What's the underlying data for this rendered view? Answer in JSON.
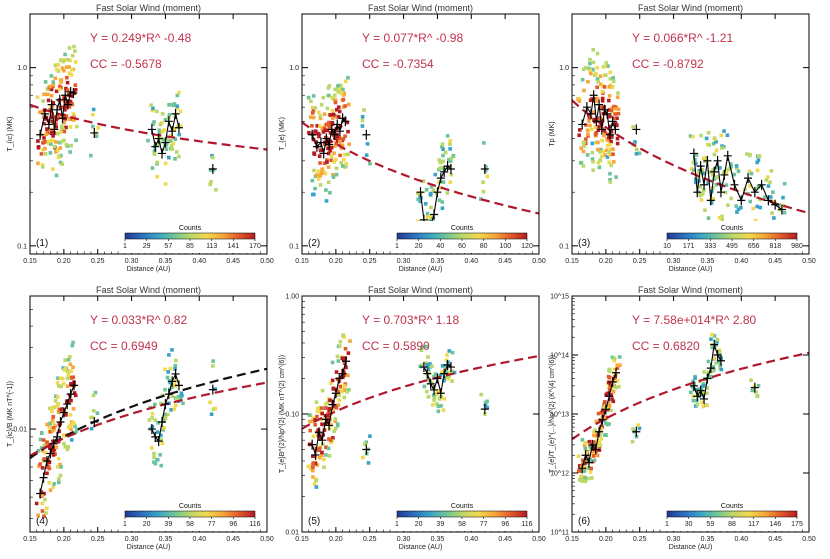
{
  "chart_data": [
    {
      "type": "scatter",
      "panel_label": "(1)",
      "title": "Fast Solar Wind (moment)",
      "ylabel": "T_{ic} (MK)",
      "xlabel": "Distance (AU)",
      "xlim": [
        0.15,
        0.5
      ],
      "ylim": [
        0.09,
        2.0
      ],
      "yscale": "log",
      "x_ticks": [
        "0.15",
        "0.20",
        "0.25",
        "0.30",
        "0.35",
        "0.40",
        "0.45",
        "0.50"
      ],
      "y_ticks": [
        {
          "value": 1.0,
          "label": "1.0"
        },
        {
          "value": 0.1,
          "label": "0.1"
        }
      ],
      "equation": "Y = 0.249*R^ -0.48",
      "cc": "CC = -0.5678",
      "fit": {
        "coef": 0.249,
        "exp": -0.48
      },
      "colorbar": {
        "title": "Counts",
        "ticks": [
          "1",
          "29",
          "57",
          "85",
          "113",
          "141",
          "170"
        ]
      },
      "data_x": [
        0.165,
        0.172,
        0.178,
        0.182,
        0.186,
        0.19,
        0.194,
        0.198,
        0.202,
        0.206,
        0.21,
        0.214,
        0.245,
        0.33,
        0.335,
        0.34,
        0.345,
        0.35,
        0.355,
        0.36,
        0.365,
        0.37,
        0.42
      ],
      "data_y": [
        0.42,
        0.55,
        0.48,
        0.62,
        0.45,
        0.58,
        0.66,
        0.52,
        0.7,
        0.62,
        0.73,
        0.72,
        0.43,
        0.45,
        0.36,
        0.4,
        0.33,
        0.38,
        0.5,
        0.44,
        0.55,
        0.46,
        0.27
      ]
    },
    {
      "type": "scatter",
      "panel_label": "(2)",
      "title": "Fast Solar Wind (moment)",
      "ylabel": "T_{e} (MK)",
      "xlabel": "Distance (AU)",
      "xlim": [
        0.15,
        0.5
      ],
      "ylim": [
        0.09,
        2.0
      ],
      "yscale": "log",
      "x_ticks": [
        "0.15",
        "0.20",
        "0.25",
        "0.30",
        "0.35",
        "0.40",
        "0.45",
        "0.50"
      ],
      "y_ticks": [
        {
          "value": 1.0,
          "label": "1.0"
        },
        {
          "value": 0.1,
          "label": "0.1"
        }
      ],
      "equation": "Y = 0.077*R^ -0.98",
      "cc": "CC = -0.7354",
      "fit": {
        "coef": 0.077,
        "exp": -0.98
      },
      "colorbar": {
        "title": "Counts",
        "ticks": [
          "1",
          "20",
          "40",
          "60",
          "80",
          "100",
          "120"
        ]
      },
      "data_x": [
        0.165,
        0.172,
        0.178,
        0.182,
        0.186,
        0.19,
        0.194,
        0.198,
        0.202,
        0.206,
        0.21,
        0.214,
        0.245,
        0.325,
        0.33,
        0.335,
        0.34,
        0.345,
        0.35,
        0.355,
        0.36,
        0.365,
        0.37,
        0.42
      ],
      "data_y": [
        0.42,
        0.36,
        0.38,
        0.33,
        0.4,
        0.37,
        0.45,
        0.42,
        0.48,
        0.44,
        0.52,
        0.5,
        0.42,
        0.2,
        0.14,
        0.12,
        0.13,
        0.15,
        0.2,
        0.24,
        0.26,
        0.28,
        0.27,
        0.27
      ]
    },
    {
      "type": "scatter",
      "panel_label": "(3)",
      "title": "Fast Solar Wind (moment)",
      "ylabel": "Tp (MK)",
      "xlabel": "Distance (AU)",
      "xlim": [
        0.15,
        0.5
      ],
      "ylim": [
        0.09,
        2.0
      ],
      "yscale": "log",
      "x_ticks": [
        "0.15",
        "0.20",
        "0.25",
        "0.30",
        "0.35",
        "0.40",
        "0.45",
        "0.50"
      ],
      "y_ticks": [
        {
          "value": 1.0,
          "label": "1.0"
        },
        {
          "value": 0.1,
          "label": "0.1"
        }
      ],
      "equation": "Y = 0.066*R^ -1.21",
      "cc": "CC = -0.8792",
      "fit": {
        "coef": 0.066,
        "exp": -1.21
      },
      "colorbar": {
        "title": "Counts",
        "ticks": [
          "10",
          "171",
          "333",
          "495",
          "656",
          "818",
          "980"
        ]
      },
      "data_x": [
        0.165,
        0.172,
        0.178,
        0.182,
        0.186,
        0.19,
        0.194,
        0.198,
        0.202,
        0.206,
        0.21,
        0.214,
        0.245,
        0.33,
        0.335,
        0.34,
        0.345,
        0.35,
        0.355,
        0.36,
        0.365,
        0.37,
        0.375,
        0.38,
        0.39,
        0.4,
        0.41,
        0.42,
        0.43,
        0.44,
        0.45,
        0.46
      ],
      "data_y": [
        0.48,
        0.6,
        0.55,
        0.7,
        0.5,
        0.62,
        0.45,
        0.58,
        0.55,
        0.42,
        0.5,
        0.45,
        0.45,
        0.33,
        0.2,
        0.28,
        0.22,
        0.3,
        0.18,
        0.26,
        0.3,
        0.2,
        0.25,
        0.32,
        0.22,
        0.18,
        0.24,
        0.2,
        0.22,
        0.18,
        0.17,
        0.16
      ]
    },
    {
      "type": "scatter",
      "panel_label": "(4)",
      "title": "Fast Solar Wind (moment)",
      "ylabel": "T_{ic}/B (MK nT^{-1})",
      "xlabel": "Distance (AU)",
      "xlim": [
        0.15,
        0.5
      ],
      "ylim": [
        0.0025,
        0.06
      ],
      "yscale": "log",
      "x_ticks": [
        "0.15",
        "0.20",
        "0.25",
        "0.30",
        "0.35",
        "0.40",
        "0.45",
        "0.50"
      ],
      "y_ticks": [
        {
          "value": 0.01,
          "label": "0.01"
        }
      ],
      "equation": "Y = 0.033*R^  0.82",
      "cc": "CC =  0.6949",
      "fit": {
        "coef": 0.033,
        "exp": 0.82
      },
      "fit2": {
        "coef": 0.045,
        "exp": 1.0
      },
      "colorbar": {
        "title": "Counts",
        "ticks": [
          "1",
          "20",
          "39",
          "58",
          "77",
          "96",
          "116"
        ]
      },
      "data_x": [
        0.165,
        0.17,
        0.175,
        0.18,
        0.185,
        0.19,
        0.195,
        0.2,
        0.205,
        0.21,
        0.215,
        0.245,
        0.33,
        0.335,
        0.34,
        0.345,
        0.35,
        0.355,
        0.36,
        0.365,
        0.37,
        0.42
      ],
      "data_y": [
        0.0042,
        0.0052,
        0.0065,
        0.0072,
        0.0082,
        0.009,
        0.011,
        0.0125,
        0.014,
        0.016,
        0.018,
        0.011,
        0.01,
        0.009,
        0.0085,
        0.011,
        0.014,
        0.016,
        0.019,
        0.021,
        0.018,
        0.017
      ]
    },
    {
      "type": "scatter",
      "panel_label": "(5)",
      "title": "Fast Solar Wind (moment)",
      "ylabel": "T_{e}B^{2}/Np^{2} (MK nT^{2} cm^{6})",
      "xlabel": "Distance (AU)",
      "xlim": [
        0.15,
        0.5
      ],
      "ylim": [
        0.01,
        1.0
      ],
      "yscale": "log",
      "x_ticks": [
        "0.15",
        "0.20",
        "0.25",
        "0.30",
        "0.35",
        "0.40",
        "0.45",
        "0.50"
      ],
      "y_ticks": [
        {
          "value": 1.0,
          "label": "1.00"
        },
        {
          "value": 0.1,
          "label": "0.10"
        },
        {
          "value": 0.01,
          "label": "0.01"
        }
      ],
      "equation": "Y = 0.703*R^  1.18",
      "cc": "CC =  0.5890",
      "fit": {
        "coef": 0.703,
        "exp": 1.18
      },
      "colorbar": {
        "title": "Counts",
        "ticks": [
          "1",
          "20",
          "39",
          "58",
          "77",
          "96",
          "116"
        ]
      },
      "data_x": [
        0.165,
        0.17,
        0.175,
        0.18,
        0.185,
        0.19,
        0.195,
        0.2,
        0.205,
        0.21,
        0.215,
        0.245,
        0.33,
        0.335,
        0.34,
        0.345,
        0.35,
        0.355,
        0.36,
        0.365,
        0.37,
        0.42
      ],
      "data_y": [
        0.055,
        0.045,
        0.07,
        0.06,
        0.09,
        0.08,
        0.12,
        0.15,
        0.2,
        0.22,
        0.28,
        0.05,
        0.25,
        0.22,
        0.18,
        0.16,
        0.2,
        0.15,
        0.22,
        0.26,
        0.25,
        0.11
      ]
    },
    {
      "type": "scatter",
      "panel_label": "(6)",
      "title": "Fast Solar Wind (moment)",
      "ylabel": "T_{e}/T_{e}^{...}/Np^{2} (K^{4} cm^{6})",
      "xlabel": "Distance (AU)",
      "xlim": [
        0.15,
        0.5
      ],
      "ylim": [
        100000000000.0,
        1000000000000000.0
      ],
      "yscale": "log",
      "x_ticks": [
        "0.15",
        "0.20",
        "0.25",
        "0.30",
        "0.35",
        "0.40",
        "0.45",
        "0.50"
      ],
      "y_ticks": [
        {
          "value": 1000000000000000.0,
          "label": "10^15"
        },
        {
          "value": 100000000000000.0,
          "label": "10^14"
        },
        {
          "value": 10000000000000.0,
          "label": "10^13"
        },
        {
          "value": 1000000000000.0,
          "label": "10^12"
        },
        {
          "value": 100000000000.0,
          "label": "10^11"
        }
      ],
      "equation": "Y = 7.58e+014*R^  2.80",
      "cc": "CC =  0.6820",
      "fit": {
        "coef": 758000000000000.0,
        "exp": 2.8
      },
      "colorbar": {
        "title": "Counts",
        "ticks": [
          "1",
          "30",
          "59",
          "88",
          "117",
          "146",
          "175"
        ]
      },
      "data_x": [
        0.165,
        0.17,
        0.175,
        0.18,
        0.185,
        0.19,
        0.195,
        0.2,
        0.205,
        0.21,
        0.215,
        0.245,
        0.33,
        0.335,
        0.34,
        0.345,
        0.35,
        0.355,
        0.36,
        0.365,
        0.37,
        0.42
      ],
      "data_y": [
        1200000000000.0,
        2000000000000.0,
        1500000000000.0,
        3000000000000.0,
        2500000000000.0,
        5000000000000.0,
        8000000000000.0,
        12000000000000.0,
        20000000000000.0,
        35000000000000.0,
        50000000000000.0,
        5000000000000.0,
        30000000000000.0,
        20000000000000.0,
        25000000000000.0,
        18000000000000.0,
        40000000000000.0,
        60000000000000.0,
        150000000000000.0,
        100000000000000.0,
        80000000000000.0,
        28000000000000.0
      ]
    }
  ]
}
